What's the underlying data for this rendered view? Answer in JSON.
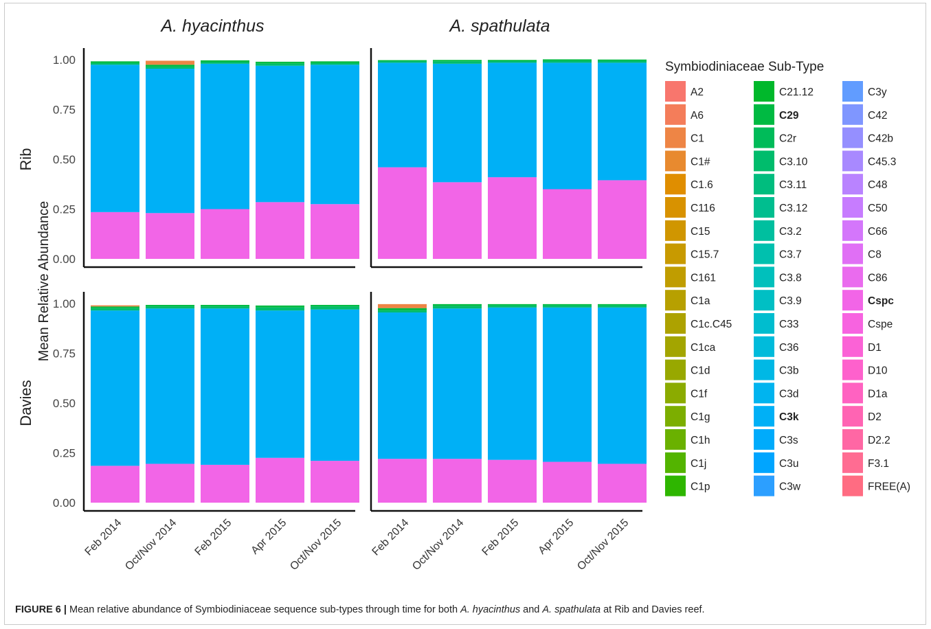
{
  "chart_data": {
    "type": "bar",
    "stacked": true,
    "facet_columns": [
      "A. hyacinthus",
      "A. spathulata"
    ],
    "facet_rows": [
      "Rib",
      "Davies"
    ],
    "categories": [
      "Feb 2014",
      "Oct/Nov 2014",
      "Feb 2015",
      "Apr 2015",
      "Oct/Nov 2015"
    ],
    "ylabel": "Mean Relative Abundance",
    "xlabel": "",
    "ylim": [
      0,
      1
    ],
    "yticks": [
      "0.00",
      "0.25",
      "0.50",
      "0.75",
      "1.00"
    ],
    "grid": false,
    "legend_position": "right",
    "legend_title": "Symbiodiniaceae Sub-Type",
    "legend": [
      {
        "label": "A2",
        "color": "#F8766D",
        "bold": false
      },
      {
        "label": "A6",
        "color": "#F47D5A",
        "bold": false
      },
      {
        "label": "C1",
        "color": "#EE8545",
        "bold": false
      },
      {
        "label": "C1#",
        "color": "#E88A2F",
        "bold": false
      },
      {
        "label": "C1.6",
        "color": "#E08E00",
        "bold": false
      },
      {
        "label": "C116",
        "color": "#D89200",
        "bold": false
      },
      {
        "label": "C15",
        "color": "#D09600",
        "bold": false
      },
      {
        "label": "C15.7",
        "color": "#C89A00",
        "bold": false
      },
      {
        "label": "C161",
        "color": "#C09D00",
        "bold": false
      },
      {
        "label": "C1a",
        "color": "#B7A000",
        "bold": false
      },
      {
        "label": "C1c.C45",
        "color": "#ADA200",
        "bold": false
      },
      {
        "label": "C1ca",
        "color": "#A3A500",
        "bold": false
      },
      {
        "label": "C1d",
        "color": "#98A800",
        "bold": false
      },
      {
        "label": "C1f",
        "color": "#8BAB00",
        "bold": false
      },
      {
        "label": "C1g",
        "color": "#7CAE00",
        "bold": false
      },
      {
        "label": "C1h",
        "color": "#6AB100",
        "bold": false
      },
      {
        "label": "C1j",
        "color": "#53B400",
        "bold": false
      },
      {
        "label": "C1p",
        "color": "#2EB600",
        "bold": false
      },
      {
        "label": "C21.12",
        "color": "#00B82B",
        "bold": false
      },
      {
        "label": "C29",
        "color": "#00BA42",
        "bold": true
      },
      {
        "label": "C2r",
        "color": "#00BB59",
        "bold": false
      },
      {
        "label": "C3.10",
        "color": "#00BC6C",
        "bold": false
      },
      {
        "label": "C3.11",
        "color": "#00BD7E",
        "bold": false
      },
      {
        "label": "C3.12",
        "color": "#00BE8F",
        "bold": false
      },
      {
        "label": "C3.2",
        "color": "#00BF9F",
        "bold": false
      },
      {
        "label": "C3.7",
        "color": "#00C0AE",
        "bold": false
      },
      {
        "label": "C3.8",
        "color": "#00C0BC",
        "bold": false
      },
      {
        "label": "C3.9",
        "color": "#00BFC4",
        "bold": false
      },
      {
        "label": "C33",
        "color": "#00BDCF",
        "bold": false
      },
      {
        "label": "C36",
        "color": "#00BBDB",
        "bold": false
      },
      {
        "label": "C3b",
        "color": "#00B8E5",
        "bold": false
      },
      {
        "label": "C3d",
        "color": "#00B4EF",
        "bold": false
      },
      {
        "label": "C3k",
        "color": "#00B0F6",
        "bold": true
      },
      {
        "label": "C3s",
        "color": "#00ABFB",
        "bold": false
      },
      {
        "label": "C3u",
        "color": "#00A5FF",
        "bold": false
      },
      {
        "label": "C3w",
        "color": "#2C9FFF",
        "bold": false
      },
      {
        "label": "C3y",
        "color": "#619CFF",
        "bold": false
      },
      {
        "label": "C42",
        "color": "#7F96FF",
        "bold": false
      },
      {
        "label": "C42b",
        "color": "#958FFF",
        "bold": false
      },
      {
        "label": "C45.3",
        "color": "#A889FF",
        "bold": false
      },
      {
        "label": "C48",
        "color": "#B983FF",
        "bold": false
      },
      {
        "label": "C50",
        "color": "#C77CFF",
        "bold": false
      },
      {
        "label": "C66",
        "color": "#D476FB",
        "bold": false
      },
      {
        "label": "C8",
        "color": "#E06FF5",
        "bold": false
      },
      {
        "label": "C86",
        "color": "#EA6BEE",
        "bold": false
      },
      {
        "label": "Cspc",
        "color": "#F265E7",
        "bold": true
      },
      {
        "label": "Cspe",
        "color": "#F763E0",
        "bold": false
      },
      {
        "label": "D1",
        "color": "#FB62D6",
        "bold": false
      },
      {
        "label": "D10",
        "color": "#FE61CC",
        "bold": false
      },
      {
        "label": "D1a",
        "color": "#FF62C1",
        "bold": false
      },
      {
        "label": "D2",
        "color": "#FF64B3",
        "bold": false
      },
      {
        "label": "D2.2",
        "color": "#FF67A4",
        "bold": false
      },
      {
        "label": "F3.1",
        "color": "#FF6C92",
        "bold": false
      },
      {
        "label": "FREE(A)",
        "color": "#FF6C82",
        "bold": false
      }
    ],
    "panels": [
      {
        "species": "A. hyacinthus",
        "site": "Rib",
        "series": [
          {
            "name": "Cspc",
            "values": [
              0.235,
              0.23,
              0.25,
              0.285,
              0.275
            ]
          },
          {
            "name": "C3k",
            "values": [
              0.74,
              0.725,
              0.73,
              0.685,
              0.7
            ]
          },
          {
            "name": "C3.10",
            "values": [
              0.008,
              0.01,
              0.008,
              0.01,
              0.008
            ]
          },
          {
            "name": "C29",
            "values": [
              0.009,
              0.01,
              0.009,
              0.01,
              0.009
            ]
          },
          {
            "name": "C1",
            "values": [
              0.0,
              0.02,
              0.0,
              0.0,
              0.0
            ]
          }
        ]
      },
      {
        "species": "A. spathulata",
        "site": "Rib",
        "series": [
          {
            "name": "Cspc",
            "values": [
              0.46,
              0.385,
              0.41,
              0.35,
              0.395
            ]
          },
          {
            "name": "C3k",
            "values": [
              0.525,
              0.595,
              0.575,
              0.635,
              0.59
            ]
          },
          {
            "name": "C3.10",
            "values": [
              0.008,
              0.012,
              0.008,
              0.01,
              0.01
            ]
          },
          {
            "name": "C29",
            "values": [
              0.005,
              0.007,
              0.006,
              0.007,
              0.006
            ]
          }
        ]
      },
      {
        "species": "A. hyacinthus",
        "site": "Davies",
        "series": [
          {
            "name": "Cspc",
            "values": [
              0.185,
              0.195,
              0.19,
              0.225,
              0.21
            ]
          },
          {
            "name": "C3k",
            "values": [
              0.78,
              0.78,
              0.785,
              0.74,
              0.76
            ]
          },
          {
            "name": "C3.10",
            "values": [
              0.012,
              0.01,
              0.01,
              0.015,
              0.015
            ]
          },
          {
            "name": "C29",
            "values": [
              0.008,
              0.008,
              0.008,
              0.01,
              0.008
            ]
          },
          {
            "name": "C1",
            "values": [
              0.006,
              0.0,
              0.0,
              0.0,
              0.0
            ]
          }
        ]
      },
      {
        "species": "A. spathulata",
        "site": "Davies",
        "series": [
          {
            "name": "Cspc",
            "values": [
              0.22,
              0.22,
              0.215,
              0.205,
              0.195
            ]
          },
          {
            "name": "C3k",
            "values": [
              0.735,
              0.755,
              0.765,
              0.775,
              0.785
            ]
          },
          {
            "name": "C3.10",
            "values": [
              0.01,
              0.012,
              0.01,
              0.01,
              0.01
            ]
          },
          {
            "name": "C29",
            "values": [
              0.012,
              0.01,
              0.007,
              0.007,
              0.007
            ]
          },
          {
            "name": "C1",
            "values": [
              0.02,
              0.0,
              0.0,
              0.0,
              0.0
            ]
          }
        ]
      }
    ]
  },
  "caption": {
    "label": "FIGURE 6 |",
    "text": " Mean relative abundance of Symbiodiniaceae sequence sub-types through time for both ",
    "species1": "A. hyacinthus",
    "and": " and ",
    "species2": "A. spathulata",
    "rest": " at Rib and Davies reef."
  }
}
